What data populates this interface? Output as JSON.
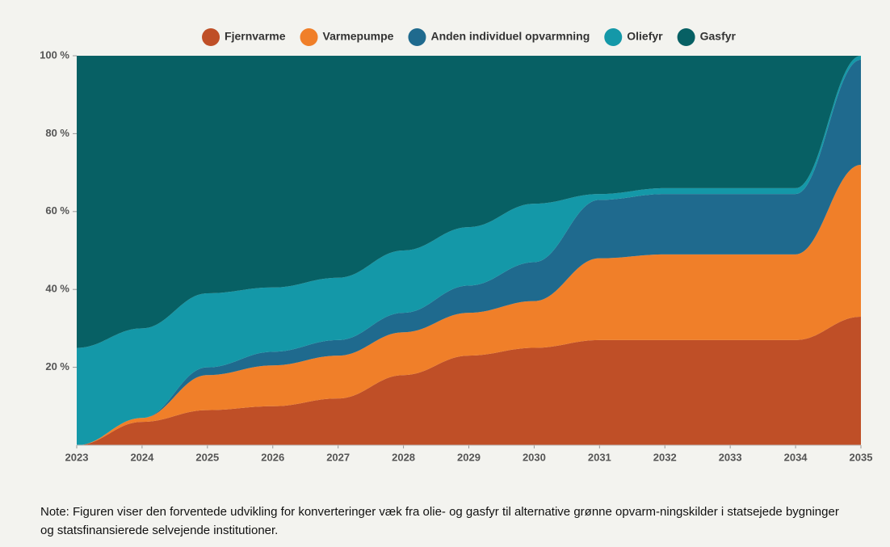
{
  "chart_data": {
    "type": "area",
    "x": [
      2023,
      2024,
      2025,
      2026,
      2027,
      2028,
      2029,
      2030,
      2031,
      2032,
      2033,
      2034,
      2035
    ],
    "series": [
      {
        "name": "Fjernvarme",
        "color": "#bf4f27",
        "values": [
          0,
          6,
          9,
          10,
          12,
          18,
          23,
          25,
          27,
          27,
          27,
          27,
          33
        ]
      },
      {
        "name": "Varmepumpe",
        "color": "#f07f29",
        "values": [
          0,
          1,
          9,
          10.5,
          11,
          11,
          11,
          12,
          21,
          22,
          22,
          22,
          39
        ]
      },
      {
        "name": "Anden individuel opvarmning",
        "color": "#1f6a8e",
        "values": [
          0,
          0,
          2,
          3.5,
          4,
          5,
          7,
          10,
          15,
          15.5,
          15.5,
          15.5,
          27
        ]
      },
      {
        "name": "Oliefyr",
        "color": "#1498a8",
        "values": [
          25,
          23,
          19,
          16.5,
          16,
          16,
          15,
          15,
          1.5,
          1.5,
          1.5,
          1.5,
          1
        ]
      },
      {
        "name": "Gasfyr",
        "color": "#076064",
        "values": [
          75,
          70,
          61,
          59.5,
          57,
          50,
          44,
          38,
          35.5,
          34,
          34,
          34,
          0
        ]
      }
    ],
    "stacked": true,
    "xlim": [
      2023,
      2035
    ],
    "xticks": [
      2023,
      2024,
      2025,
      2026,
      2027,
      2028,
      2029,
      2030,
      2031,
      2032,
      2033,
      2034,
      2035
    ],
    "ylim": [
      0,
      100
    ],
    "yticks": [
      {
        "value": 20,
        "label": "20 %"
      },
      {
        "value": 40,
        "label": "40 %"
      },
      {
        "value": 60,
        "label": "60 %"
      },
      {
        "value": 80,
        "label": "80 %"
      },
      {
        "value": 100,
        "label": "100 %"
      }
    ],
    "legend": "top",
    "note": "Note: Figuren viser den forventede udvikling for konverteringer væk fra olie- og gasfyr til alternative grønne opvarm-ningskilder i statsejede bygninger og statsfinansierede selvejende institutioner."
  }
}
